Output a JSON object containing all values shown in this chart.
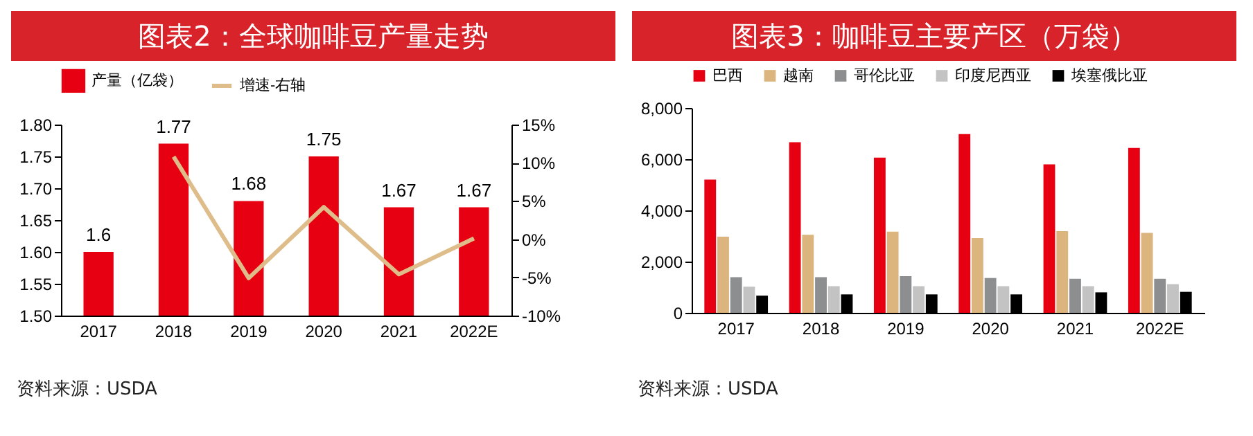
{
  "chart_data": [
    {
      "type": "bar",
      "title": "图表2：全球咖啡豆产量走势",
      "categories": [
        "2017",
        "2018",
        "2019",
        "2020",
        "2021",
        "2022E"
      ],
      "series": [
        {
          "name": "产量（亿袋）",
          "type": "bar",
          "color": "#e60012",
          "values": [
            1.6,
            1.77,
            1.68,
            1.75,
            1.67,
            1.67
          ],
          "value_labels": [
            "1.6",
            "1.77",
            "1.68",
            "1.75",
            "1.67",
            "1.67"
          ]
        },
        {
          "name": "增速-右轴",
          "type": "line",
          "axis": "y2",
          "color": "#dfbd8a",
          "values": [
            null,
            10.8,
            -5.1,
            4.2,
            -4.6,
            0.1
          ]
        }
      ],
      "ylim": [
        1.5,
        1.8
      ],
      "yticks": [
        {
          "value": 1.5,
          "label": "1.50"
        },
        {
          "value": 1.55,
          "label": "1.55"
        },
        {
          "value": 1.6,
          "label": "1.60"
        },
        {
          "value": 1.65,
          "label": "1.65"
        },
        {
          "value": 1.7,
          "label": "1.70"
        },
        {
          "value": 1.75,
          "label": "1.75"
        },
        {
          "value": 1.8,
          "label": "1.80"
        }
      ],
      "y2lim": [
        -10,
        15
      ],
      "y2ticks": [
        {
          "value": -10,
          "label": "-10%"
        },
        {
          "value": -5,
          "label": "-5%"
        },
        {
          "value": 0,
          "label": "0%"
        },
        {
          "value": 5,
          "label": "5%"
        },
        {
          "value": 10,
          "label": "10%"
        },
        {
          "value": 15,
          "label": "15%"
        }
      ],
      "legend": "top",
      "annotations": [
        "资料来源：USDA"
      ]
    },
    {
      "type": "bar",
      "title": "图表3：咖啡豆主要产区（万袋）",
      "categories": [
        "2017",
        "2018",
        "2019",
        "2020",
        "2021",
        "2022E"
      ],
      "series": [
        {
          "name": "巴西",
          "color": "#e60012",
          "values": [
            5200,
            6660,
            6060,
            6980,
            5800,
            6440
          ]
        },
        {
          "name": "越南",
          "color": "#dcb47e",
          "values": [
            2970,
            3050,
            3170,
            2920,
            3190,
            3120
          ]
        },
        {
          "name": "哥伦比亚",
          "color": "#8c8e90",
          "values": [
            1390,
            1390,
            1430,
            1360,
            1330,
            1330
          ]
        },
        {
          "name": "印度尼西亚",
          "color": "#c3c3c3",
          "values": [
            1020,
            1040,
            1040,
            1040,
            1040,
            1120
          ]
        },
        {
          "name": "埃塞俄比亚",
          "color": "#000000",
          "values": [
            670,
            720,
            720,
            720,
            800,
            820
          ]
        }
      ],
      "ylim": [
        0,
        8000
      ],
      "yticks": [
        0,
        {
          "value": 2000,
          "label": "2,000"
        },
        {
          "value": 4000,
          "label": "4,000"
        },
        {
          "value": 6000,
          "label": "6,000"
        },
        {
          "value": 8000,
          "label": "8,000"
        }
      ],
      "legend": "top",
      "annotations": [
        "资料来源：USDA"
      ]
    }
  ]
}
